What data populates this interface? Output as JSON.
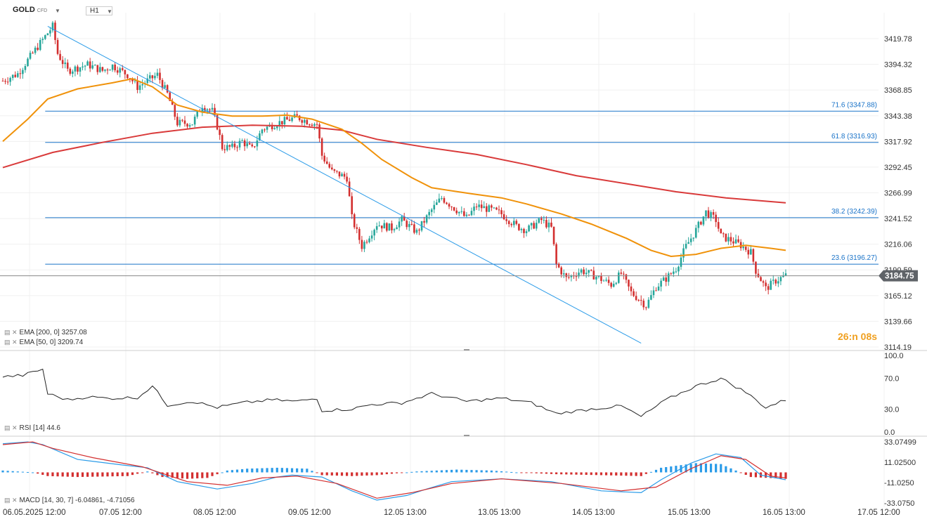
{
  "header": {
    "symbol": "GOLD",
    "symbol_badge": "CFD",
    "timeframe": "H1"
  },
  "indicators": {
    "ema200": "EMA [200, 0] 3257.08",
    "ema50": "EMA [50, 0] 3209.74",
    "rsi": "RSI [14] 44.6",
    "macd": "MACD [14, 30, 7] -6.04861, -4.71056"
  },
  "countdown": "26:n 08s",
  "colors": {
    "bull": "#26a69a",
    "bear": "#d32f2f",
    "ema50": "#f0920a",
    "ema200": "#d93a3a",
    "fib": "#1a73c8",
    "trend": "#2a9be8",
    "rsi": "#222222",
    "macd": "#2a9be8",
    "signal": "#d32f2f",
    "price_tag": "#5f6368"
  },
  "chart_data": [
    {
      "type": "candlestick",
      "panel": "price",
      "x_labels": [
        "06.05.2025 12:00",
        "07.05 12:00",
        "08.05 12:00",
        "09.05 12:00",
        "12.05 13:00",
        "13.05 13:00",
        "14.05 13:00",
        "15.05 13:00",
        "16.05 13:00",
        "17.05 12:00"
      ],
      "y_ticks": [
        "3419.78",
        "3394.32",
        "3368.85",
        "3343.38",
        "3317.92",
        "3292.45",
        "3266.99",
        "3241.52",
        "3216.06",
        "3190.59",
        "3165.12",
        "3139.66",
        "3114.19"
      ],
      "ylim": [
        3114.19,
        3419.78
      ],
      "last_price": "3184.75",
      "close_path": [
        [
          0,
          3378
        ],
        [
          6,
          3385
        ],
        [
          14,
          3412
        ],
        [
          20,
          3432
        ],
        [
          22,
          3405
        ],
        [
          26,
          3388
        ],
        [
          34,
          3394
        ],
        [
          40,
          3388
        ],
        [
          44,
          3393
        ],
        [
          50,
          3384
        ],
        [
          54,
          3372
        ],
        [
          58,
          3378
        ],
        [
          62,
          3384
        ],
        [
          66,
          3365
        ],
        [
          70,
          3336
        ],
        [
          76,
          3336
        ],
        [
          80,
          3354
        ],
        [
          84,
          3348
        ],
        [
          86,
          3333
        ],
        [
          88,
          3312
        ],
        [
          92,
          3312
        ],
        [
          96,
          3318
        ],
        [
          100,
          3310
        ],
        [
          104,
          3330
        ],
        [
          110,
          3336
        ],
        [
          118,
          3342
        ],
        [
          122,
          3338
        ],
        [
          126,
          3335
        ],
        [
          128,
          3304
        ],
        [
          132,
          3288
        ],
        [
          138,
          3282
        ],
        [
          140,
          3242
        ],
        [
          144,
          3214
        ],
        [
          150,
          3236
        ],
        [
          156,
          3232
        ],
        [
          160,
          3240
        ],
        [
          166,
          3228
        ],
        [
          172,
          3250
        ],
        [
          176,
          3262
        ],
        [
          182,
          3250
        ],
        [
          186,
          3242
        ],
        [
          190,
          3254
        ],
        [
          196,
          3250
        ],
        [
          200,
          3246
        ],
        [
          206,
          3234
        ],
        [
          210,
          3230
        ],
        [
          216,
          3240
        ],
        [
          220,
          3232
        ],
        [
          222,
          3196
        ],
        [
          226,
          3182
        ],
        [
          232,
          3190
        ],
        [
          238,
          3184
        ],
        [
          244,
          3176
        ],
        [
          248,
          3187
        ],
        [
          252,
          3168
        ],
        [
          256,
          3160
        ],
        [
          258,
          3155
        ],
        [
          262,
          3174
        ],
        [
          266,
          3182
        ],
        [
          270,
          3192
        ],
        [
          274,
          3214
        ],
        [
          278,
          3230
        ],
        [
          282,
          3248
        ],
        [
          286,
          3240
        ],
        [
          288,
          3224
        ],
        [
          292,
          3220
        ],
        [
          296,
          3215
        ],
        [
          300,
          3208
        ],
        [
          302,
          3190
        ],
        [
          306,
          3172
        ],
        [
          310,
          3180
        ],
        [
          314,
          3185
        ]
      ],
      "ema50": [
        [
          0,
          3318
        ],
        [
          10,
          3340
        ],
        [
          18,
          3360
        ],
        [
          30,
          3370
        ],
        [
          44,
          3376
        ],
        [
          52,
          3380
        ],
        [
          60,
          3372
        ],
        [
          70,
          3354
        ],
        [
          80,
          3347
        ],
        [
          92,
          3343
        ],
        [
          104,
          3343
        ],
        [
          114,
          3344
        ],
        [
          124,
          3340
        ],
        [
          136,
          3330
        ],
        [
          144,
          3316
        ],
        [
          152,
          3300
        ],
        [
          164,
          3282
        ],
        [
          172,
          3272
        ],
        [
          188,
          3266
        ],
        [
          200,
          3262
        ],
        [
          210,
          3256
        ],
        [
          224,
          3246
        ],
        [
          236,
          3236
        ],
        [
          250,
          3222
        ],
        [
          260,
          3210
        ],
        [
          268,
          3204
        ],
        [
          278,
          3206
        ],
        [
          288,
          3212
        ],
        [
          298,
          3215
        ],
        [
          308,
          3212
        ],
        [
          314,
          3210
        ]
      ],
      "ema200": [
        [
          0,
          3292
        ],
        [
          20,
          3307
        ],
        [
          40,
          3317
        ],
        [
          60,
          3326
        ],
        [
          80,
          3332
        ],
        [
          100,
          3334
        ],
        [
          120,
          3333
        ],
        [
          136,
          3329
        ],
        [
          150,
          3320
        ],
        [
          170,
          3312
        ],
        [
          190,
          3305
        ],
        [
          210,
          3295
        ],
        [
          230,
          3284
        ],
        [
          250,
          3276
        ],
        [
          270,
          3268
        ],
        [
          290,
          3262
        ],
        [
          314,
          3257
        ]
      ],
      "fibonacci": [
        {
          "label": "71.6 (3347.88)",
          "value": 3347.88
        },
        {
          "label": "61.8 (3316.93)",
          "value": 3316.93
        },
        {
          "label": "38.2 (3242.39)",
          "value": 3242.39
        },
        {
          "label": "23.6 (3196.27)",
          "value": 3196.27
        }
      ],
      "trendline": [
        [
          18,
          3432
        ],
        [
          256,
          3118
        ]
      ]
    },
    {
      "type": "line",
      "panel": "rsi",
      "y_ticks": [
        "100.0",
        "70.0",
        "30.0",
        "0.0"
      ],
      "ylim": [
        0,
        100
      ],
      "values": [
        [
          0,
          72
        ],
        [
          8,
          74
        ],
        [
          16,
          82
        ],
        [
          18,
          50
        ],
        [
          26,
          42
        ],
        [
          34,
          46
        ],
        [
          42,
          44
        ],
        [
          54,
          45
        ],
        [
          60,
          60
        ],
        [
          66,
          35
        ],
        [
          76,
          40
        ],
        [
          86,
          32
        ],
        [
          96,
          38
        ],
        [
          108,
          42
        ],
        [
          118,
          40
        ],
        [
          126,
          44
        ],
        [
          128,
          28
        ],
        [
          140,
          30
        ],
        [
          148,
          36
        ],
        [
          160,
          38
        ],
        [
          172,
          50
        ],
        [
          186,
          40
        ],
        [
          200,
          44
        ],
        [
          212,
          38
        ],
        [
          222,
          24
        ],
        [
          236,
          30
        ],
        [
          248,
          34
        ],
        [
          256,
          20
        ],
        [
          266,
          42
        ],
        [
          278,
          60
        ],
        [
          288,
          70
        ],
        [
          298,
          52
        ],
        [
          306,
          32
        ],
        [
          314,
          42
        ]
      ]
    },
    {
      "type": "bar",
      "panel": "macd",
      "y_ticks": [
        "33.07499",
        "11.02500",
        "-11.0250",
        "-33.0750"
      ],
      "ylim": [
        -33.075,
        33.07499
      ],
      "histogram": [
        [
          0,
          2
        ],
        [
          6,
          1
        ],
        [
          12,
          0
        ],
        [
          18,
          -4
        ],
        [
          30,
          -5
        ],
        [
          50,
          -4
        ],
        [
          58,
          1
        ],
        [
          64,
          -5
        ],
        [
          74,
          -7
        ],
        [
          82,
          -6
        ],
        [
          90,
          2
        ],
        [
          98,
          4
        ],
        [
          110,
          5
        ],
        [
          122,
          4
        ],
        [
          128,
          -3
        ],
        [
          140,
          -4
        ],
        [
          150,
          -3
        ],
        [
          166,
          1
        ],
        [
          182,
          3
        ],
        [
          196,
          2
        ],
        [
          206,
          0
        ],
        [
          222,
          -2
        ],
        [
          240,
          -3
        ],
        [
          256,
          -4
        ],
        [
          264,
          5
        ],
        [
          278,
          10
        ],
        [
          288,
          9
        ],
        [
          300,
          -5
        ],
        [
          314,
          -7
        ]
      ],
      "macd": [
        [
          0,
          31
        ],
        [
          10,
          33
        ],
        [
          16,
          30
        ],
        [
          30,
          14
        ],
        [
          48,
          8
        ],
        [
          58,
          5
        ],
        [
          70,
          -10
        ],
        [
          86,
          -18
        ],
        [
          100,
          -12
        ],
        [
          110,
          -5
        ],
        [
          116,
          -3
        ],
        [
          128,
          -5
        ],
        [
          140,
          -20
        ],
        [
          150,
          -30
        ],
        [
          162,
          -25
        ],
        [
          170,
          -18
        ],
        [
          180,
          -10
        ],
        [
          200,
          -7
        ],
        [
          220,
          -10
        ],
        [
          240,
          -20
        ],
        [
          256,
          -22
        ],
        [
          264,
          -8
        ],
        [
          276,
          10
        ],
        [
          286,
          20
        ],
        [
          296,
          16
        ],
        [
          304,
          -3
        ],
        [
          314,
          -8
        ]
      ],
      "signal": [
        [
          0,
          30
        ],
        [
          12,
          33
        ],
        [
          20,
          26
        ],
        [
          36,
          16
        ],
        [
          56,
          6
        ],
        [
          74,
          -10
        ],
        [
          90,
          -14
        ],
        [
          104,
          -6
        ],
        [
          118,
          -4
        ],
        [
          134,
          -12
        ],
        [
          150,
          -28
        ],
        [
          164,
          -22
        ],
        [
          180,
          -12
        ],
        [
          200,
          -7
        ],
        [
          224,
          -12
        ],
        [
          248,
          -20
        ],
        [
          262,
          -16
        ],
        [
          276,
          4
        ],
        [
          288,
          18
        ],
        [
          298,
          14
        ],
        [
          308,
          -4
        ],
        [
          314,
          -6
        ]
      ]
    }
  ]
}
